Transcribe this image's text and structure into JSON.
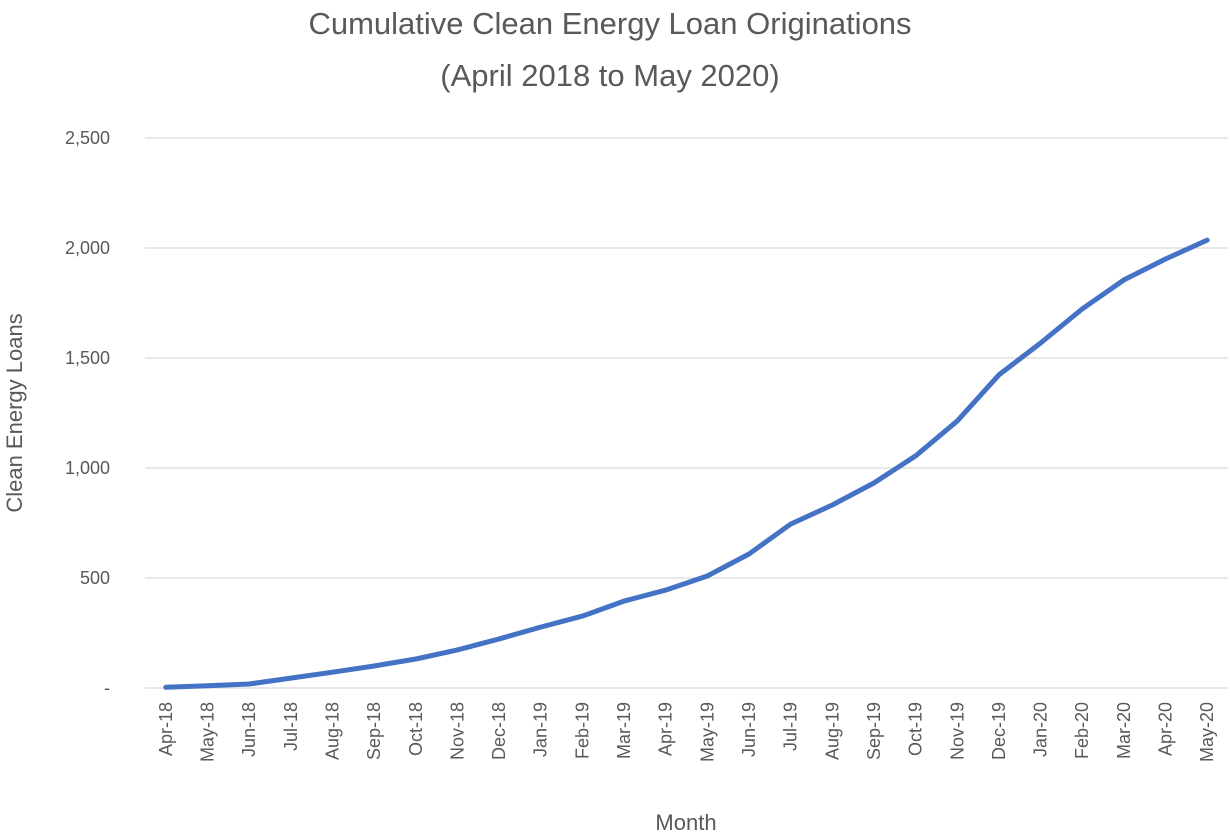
{
  "chart_data": {
    "type": "line",
    "title": "Cumulative Clean Energy Loan Originations",
    "subtitle": "(April 2018 to May 2020)",
    "x_label": "Month",
    "y_label": "Clean Energy Loans",
    "categories": [
      "Apr-18",
      "May-18",
      "Jun-18",
      "Jul-18",
      "Aug-18",
      "Sep-18",
      "Oct-18",
      "Nov-18",
      "Dec-18",
      "Jan-19",
      "Feb-19",
      "Mar-19",
      "Apr-19",
      "May-19",
      "Jun-19",
      "Jul-19",
      "Aug-19",
      "Sep-19",
      "Oct-19",
      "Nov-19",
      "Dec-19",
      "Jan-20",
      "Feb-20",
      "Mar-20",
      "Apr-20",
      "May-20"
    ],
    "series": [
      {
        "name": "Clean Energy Loans",
        "color": "#4472c4",
        "values": [
          3,
          10,
          18,
          45,
          72,
          100,
          132,
          173,
          223,
          277,
          327,
          395,
          445,
          509,
          609,
          745,
          832,
          932,
          1055,
          1214,
          1423,
          1568,
          1723,
          1855,
          1950,
          2036
        ]
      }
    ],
    "ylim": [
      0,
      2500
    ],
    "yticks": [
      {
        "value": 0,
        "label": "-"
      },
      500,
      {
        "value": 1000,
        "label": "1,000"
      },
      {
        "value": 1500,
        "label": "1,500"
      },
      {
        "value": 2000,
        "label": "2,000"
      },
      {
        "value": 2500,
        "label": "2,500"
      }
    ],
    "grid": true
  }
}
